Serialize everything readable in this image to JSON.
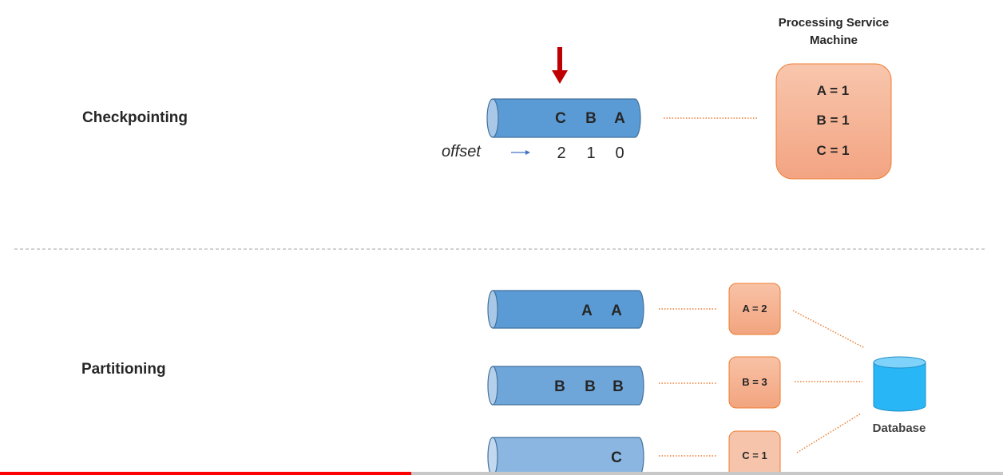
{
  "checkpointing": {
    "label": "Checkpointing",
    "pipe": {
      "letters": [
        "C",
        "B",
        "A"
      ]
    },
    "offset": {
      "label": "offset",
      "values": [
        "2",
        "1",
        "0"
      ]
    },
    "service": {
      "title_lines": [
        "Processing Service",
        "Machine"
      ],
      "entries": [
        "A = 1",
        "B = 1",
        "C = 1"
      ]
    }
  },
  "partitioning": {
    "label": "Partitioning",
    "partitions": [
      {
        "letters": [
          "A",
          "A"
        ],
        "state": "A = 2"
      },
      {
        "letters": [
          "B",
          "B",
          "B"
        ],
        "state": "B = 3"
      },
      {
        "letters": [
          "C"
        ],
        "state": "C = 1"
      }
    ],
    "database": {
      "label": "Database"
    }
  },
  "colors": {
    "pipe_blue": "#5b9bd5",
    "pipe_stroke": "#41719c",
    "arrow_red": "#c00000",
    "box_salmon": "#f4b183",
    "box_stroke": "#ed7d31",
    "database_cyan": "#29b6f6",
    "progress_red": "#ff0000"
  },
  "video_progress": {
    "played_fraction": 0.41
  }
}
